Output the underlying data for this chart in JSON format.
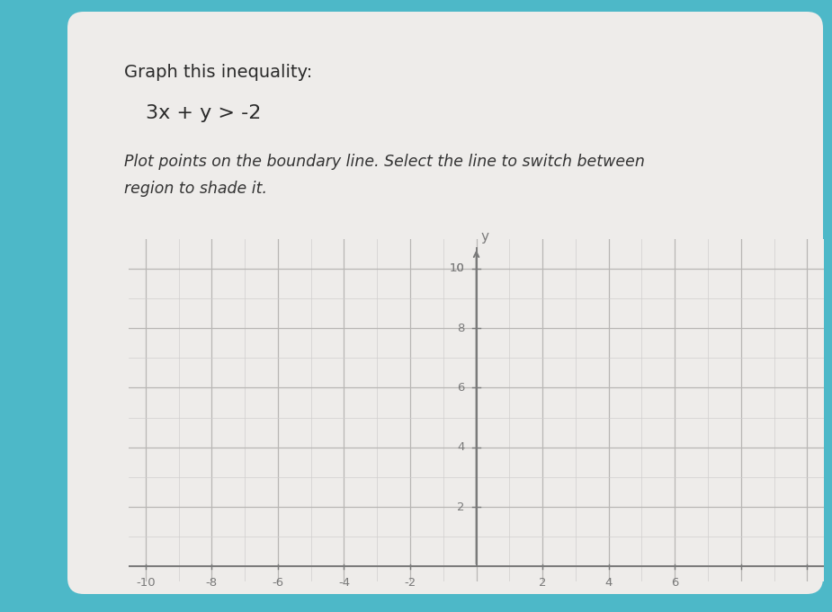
{
  "title_text": "Graph this inequality:",
  "equation": "3x + y > -2",
  "instruction_line1": "Plot points on the boundary line. Select the line to switch between",
  "instruction_line2": "region to shade it.",
  "card_bg": "#eeecea",
  "outer_bg": "#4db8c8",
  "grid_minor_color": "#d0cece",
  "grid_major_color": "#b8b6b4",
  "axis_color": "#7a7a7a",
  "tick_label_color": "#7a7a7a",
  "title_fontsize": 14,
  "equation_fontsize": 16,
  "instruction_fontsize": 12.5,
  "graph_xlim": [
    -10.5,
    10.5
  ],
  "graph_ylim": [
    -0.5,
    11.0
  ],
  "minor_ticks_x": [
    -10,
    -9,
    -8,
    -7,
    -6,
    -5,
    -4,
    -3,
    -2,
    -1,
    0,
    1,
    2,
    3,
    4,
    5,
    6,
    7,
    8,
    9,
    10
  ],
  "minor_ticks_y": [
    0,
    1,
    2,
    3,
    4,
    5,
    6,
    7,
    8,
    9,
    10
  ],
  "major_ticks_x": [
    -10,
    -8,
    -6,
    -4,
    -2,
    0,
    2,
    4,
    6,
    8,
    10
  ],
  "major_ticks_y": [
    0,
    2,
    4,
    6,
    8,
    10
  ],
  "x_label_vals": [
    -10,
    -8,
    -6,
    -4,
    -2,
    2,
    4,
    6
  ],
  "y_label_vals": [
    2,
    4,
    6,
    8,
    10
  ]
}
